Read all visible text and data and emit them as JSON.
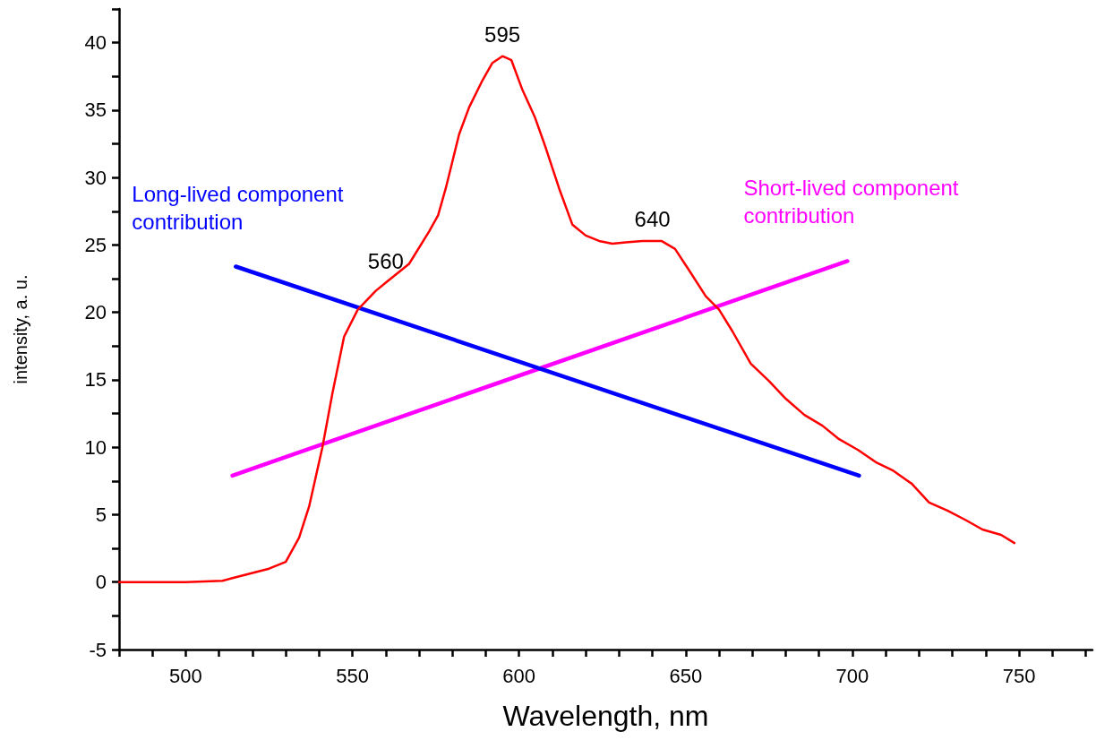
{
  "chart_data": {
    "type": "line",
    "xlabel": "Wavelength, nm",
    "ylabel": "intensity, a. u.",
    "xlim": [
      480,
      772
    ],
    "ylim": [
      -5,
      42.5
    ],
    "xticks": [
      {
        "value": 480,
        "label": null
      },
      {
        "value": 490,
        "label": null
      },
      500,
      {
        "value": 510,
        "label": null
      },
      {
        "value": 520,
        "label": null
      },
      {
        "value": 530,
        "label": null
      },
      {
        "value": 540,
        "label": null
      },
      550,
      {
        "value": 560,
        "label": null
      },
      {
        "value": 570,
        "label": null
      },
      {
        "value": 580,
        "label": null
      },
      {
        "value": 590,
        "label": null
      },
      600,
      {
        "value": 610,
        "label": null
      },
      {
        "value": 620,
        "label": null
      },
      {
        "value": 630,
        "label": null
      },
      {
        "value": 640,
        "label": null
      },
      650,
      {
        "value": 660,
        "label": null
      },
      {
        "value": 670,
        "label": null
      },
      {
        "value": 680,
        "label": null
      },
      {
        "value": 690,
        "label": null
      },
      700,
      {
        "value": 710,
        "label": null
      },
      {
        "value": 720,
        "label": null
      },
      {
        "value": 730,
        "label": null
      },
      {
        "value": 740,
        "label": null
      },
      750,
      {
        "value": 760,
        "label": null
      },
      {
        "value": 770,
        "label": null
      }
    ],
    "yticks": [
      -5,
      {
        "value": -2.5,
        "label": null
      },
      0,
      {
        "value": 2.5,
        "label": null
      },
      5,
      {
        "value": 7.5,
        "label": null
      },
      10,
      {
        "value": 12.5,
        "label": null
      },
      15,
      {
        "value": 17.5,
        "label": null
      },
      20,
      {
        "value": 22.5,
        "label": null
      },
      25,
      {
        "value": 27.5,
        "label": null
      },
      30,
      {
        "value": 32.5,
        "label": null
      },
      35,
      {
        "value": 37.5,
        "label": null
      },
      40,
      {
        "value": 42.5,
        "label": null
      }
    ],
    "grid": false,
    "legend": false,
    "marker": "none",
    "line_style": "solid",
    "series": [
      {
        "color": "#ff0000",
        "x": [
          480,
          500,
          511,
          514,
          525,
          530,
          534,
          537,
          541,
          544,
          547.5,
          551.6,
          557,
          560,
          562,
          567,
          573,
          575.7,
          578,
          582,
          585,
          589,
          592,
          595,
          597.7,
          601,
          604.7,
          608,
          612,
          616,
          620,
          624,
          628,
          632,
          637,
          640,
          642.7,
          646.8,
          650.8,
          656,
          660,
          664,
          669.5,
          675,
          680,
          685.6,
          691,
          696,
          701.7,
          707,
          712,
          717.8,
          723,
          728.5,
          734,
          739,
          744.6,
          748.6
        ],
        "values": [
          0,
          0,
          0.1,
          0.3,
          1,
          1.5,
          3.3,
          5.6,
          10,
          14,
          18.2,
          20.2,
          21.6,
          22.2,
          22.6,
          23.6,
          26,
          27.2,
          29.2,
          33.2,
          35.2,
          37.2,
          38.5,
          39,
          38.7,
          36.5,
          34.5,
          32.2,
          29.2,
          26.5,
          25.7,
          25.3,
          25.1,
          25.2,
          25.3,
          25.3,
          25.3,
          24.7,
          23.2,
          21.2,
          20.2,
          18.6,
          16.2,
          14.9,
          13.6,
          12.4,
          11.6,
          10.6,
          9.8,
          8.9,
          8.3,
          7.3,
          5.9,
          5.3,
          4.6,
          3.9,
          3.5,
          2.9
        ]
      },
      {
        "name": "Long-lived component contribution",
        "color": "#0000ff",
        "x": [
          515,
          702
        ],
        "values": [
          23.4,
          7.9
        ]
      },
      {
        "name": "Short-lived component contribution",
        "color": "#ff00ff",
        "x": [
          514,
          698.5
        ],
        "values": [
          7.9,
          23.8
        ]
      }
    ],
    "annotations": [
      {
        "text": "595",
        "x": 595,
        "y": 39
      },
      {
        "text": "560",
        "x": 560,
        "y": 22.2
      },
      {
        "text": "640",
        "x": 640,
        "y": 25.3
      }
    ]
  }
}
